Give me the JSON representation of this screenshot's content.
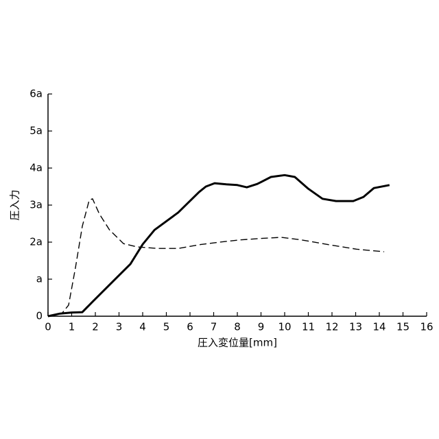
{
  "chart_data": {
    "type": "line",
    "xlabel": "圧入変位量[mm]",
    "ylabel": "圧入力",
    "xlim": [
      0,
      16
    ],
    "xticks": [
      0,
      1,
      2,
      3,
      4,
      5,
      6,
      7,
      8,
      9,
      10,
      11,
      12,
      13,
      14,
      15,
      16
    ],
    "ylim": [
      0,
      6
    ],
    "yticks": [
      0,
      {
        "value": 1,
        "label": "a"
      },
      {
        "value": 2,
        "label": "2a"
      },
      {
        "value": 3,
        "label": "3a"
      },
      {
        "value": 4,
        "label": "4a"
      },
      {
        "value": 5,
        "label": "5a"
      },
      {
        "value": 6,
        "label": "6a"
      }
    ],
    "series": [
      {
        "color": "#000000",
        "style": "solid",
        "x": [
          0,
          0.5,
          1.0,
          1.45,
          1.88,
          2.9,
          3.48,
          4.0,
          4.5,
          5.5,
          6.38,
          6.67,
          7.04,
          7.54,
          8.0,
          8.4,
          8.84,
          9.42,
          10.0,
          10.43,
          11.0,
          11.6,
          12.17,
          12.9,
          13.33,
          13.77,
          14.43
        ],
        "values": [
          0,
          0.07,
          0.1,
          0.11,
          0.39,
          1.04,
          1.41,
          1.94,
          2.33,
          2.8,
          3.35,
          3.5,
          3.59,
          3.56,
          3.54,
          3.48,
          3.57,
          3.76,
          3.81,
          3.76,
          3.44,
          3.17,
          3.11,
          3.11,
          3.22,
          3.46,
          3.54
        ]
      },
      {
        "color": "#000000",
        "style": "dashed",
        "x": [
          0,
          0.58,
          0.87,
          1.16,
          1.45,
          1.74,
          1.88,
          2.17,
          2.6,
          3.19,
          3.77,
          4.64,
          5.5,
          6.38,
          7.25,
          8.1,
          9.0,
          9.86,
          10.72,
          11.88,
          13.04,
          14.2
        ],
        "values": [
          0,
          0.07,
          0.3,
          1.31,
          2.43,
          3.13,
          3.17,
          2.76,
          2.33,
          1.96,
          1.87,
          1.83,
          1.83,
          1.93,
          2.0,
          2.06,
          2.1,
          2.13,
          2.06,
          1.93,
          1.81,
          1.74
        ]
      }
    ]
  }
}
